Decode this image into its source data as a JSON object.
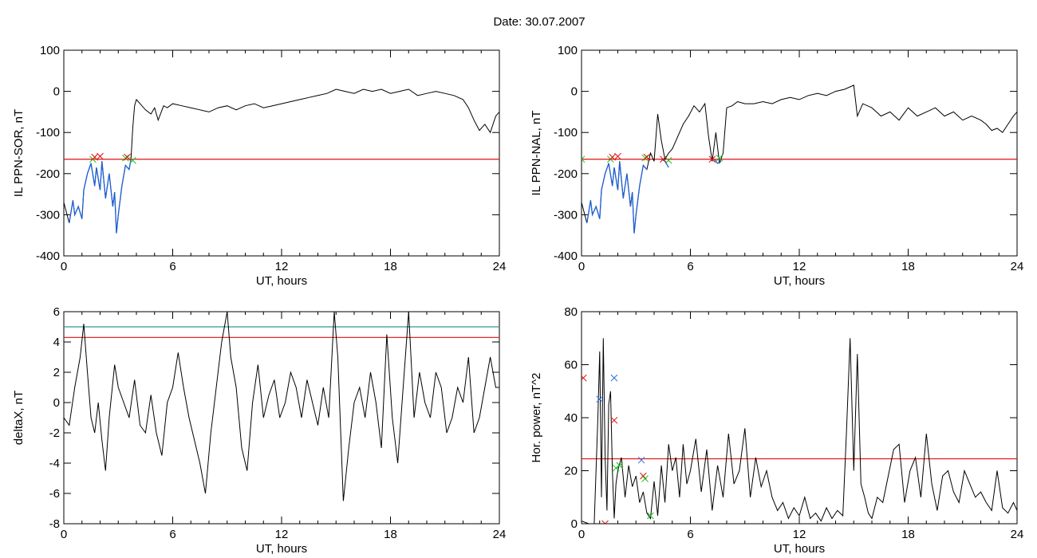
{
  "figure": {
    "title": "Date:  30.07.2007"
  },
  "colors": {
    "trace": "#000000",
    "highlight": "#1f5fd6",
    "threshold": "#e01010",
    "threshold2": "#2a9a9a",
    "marker_green": "#22c022",
    "marker_red": "#e01010",
    "marker_blue": "#2f6fe0"
  },
  "chart_data": [
    {
      "id": "sor",
      "type": "line",
      "title": "",
      "xlabel": "UT, hours",
      "ylabel": "IL PPN-SOR, nT",
      "xlim": [
        0,
        24
      ],
      "ylim": [
        -400,
        100
      ],
      "xticks": [
        "0",
        "6",
        "12",
        "18",
        "24"
      ],
      "yticks": [
        "-400",
        "-300",
        "-200",
        "-100",
        "0",
        "100"
      ],
      "threshold": -165,
      "series": [
        {
          "x": [
            0,
            0.3,
            0.5,
            0.6,
            0.8,
            1.0,
            1.1,
            1.3,
            1.5,
            1.7,
            1.8,
            2.0,
            2.1,
            2.3,
            2.5,
            2.7,
            2.8,
            2.9,
            3.0,
            3.2,
            3.4,
            3.6,
            3.7,
            3.8,
            3.9,
            4.0,
            4.1,
            4.2,
            4.5,
            4.8,
            5.0,
            5.2,
            5.5,
            5.7,
            6.0,
            6.5,
            7.0,
            7.5,
            8.0,
            8.5,
            9.0,
            9.5,
            10.0,
            10.5,
            11.0,
            11.5,
            12.0,
            12.5,
            13.0,
            13.5,
            14.0,
            14.5,
            15.0,
            15.5,
            16.0,
            16.5,
            17.0,
            17.5,
            18.0,
            18.5,
            19.0,
            19.5,
            20.0,
            20.5,
            21.0,
            21.5,
            22.0,
            22.3,
            22.6,
            22.9,
            23.2,
            23.5,
            23.8,
            24.0
          ],
          "y": [
            -270,
            -320,
            -265,
            -300,
            -280,
            -310,
            -240,
            -200,
            -175,
            -230,
            -185,
            -240,
            -170,
            -260,
            -200,
            -280,
            -245,
            -345,
            -300,
            -230,
            -180,
            -190,
            -165,
            -90,
            -35,
            -20,
            -25,
            -30,
            -45,
            -55,
            -40,
            -70,
            -35,
            -40,
            -30,
            -35,
            -40,
            -45,
            -50,
            -40,
            -35,
            -45,
            -35,
            -30,
            -40,
            -35,
            -30,
            -25,
            -20,
            -15,
            -10,
            -5,
            5,
            0,
            -5,
            5,
            0,
            5,
            -5,
            0,
            5,
            -10,
            -5,
            0,
            -5,
            -10,
            -20,
            -40,
            -70,
            -95,
            -80,
            -100,
            -60,
            -50
          ]
        },
        {
          "name": "",
          "x": [
            0.3,
            0.5,
            0.6,
            0.8,
            1.0,
            1.1,
            1.3,
            1.5,
            1.7,
            1.8,
            2.0,
            2.1,
            2.3,
            2.5,
            2.7,
            2.8,
            2.9,
            3.0,
            3.2,
            3.4,
            3.6,
            3.7
          ],
          "y": [
            -320,
            -265,
            -300,
            -280,
            -310,
            -240,
            -200,
            -175,
            -230,
            -185,
            -240,
            -170,
            -260,
            -200,
            -280,
            -245,
            -345,
            -300,
            -230,
            -180,
            -190,
            -165
          ]
        }
      ],
      "markers": [
        {
          "color": "green",
          "points": [
            [
              1.6,
              -165
            ],
            [
              3.4,
              -162
            ],
            [
              3.8,
              -168
            ]
          ]
        },
        {
          "color": "red",
          "points": [
            [
              1.7,
              -160
            ],
            [
              2.0,
              -158
            ],
            [
              3.5,
              -160
            ]
          ]
        }
      ]
    },
    {
      "id": "nal",
      "type": "line",
      "title": "",
      "xlabel": "UT, hours",
      "ylabel": "IL PPN-NAL, nT",
      "xlim": [
        0,
        24
      ],
      "ylim": [
        -400,
        100
      ],
      "xticks": [
        "0",
        "6",
        "12",
        "18",
        "24"
      ],
      "yticks": [
        "-400",
        "-300",
        "-200",
        "-100",
        "0",
        "100"
      ],
      "threshold": -165,
      "series": [
        {
          "x": [
            0,
            0.3,
            0.5,
            0.6,
            0.8,
            1.0,
            1.1,
            1.3,
            1.5,
            1.7,
            1.8,
            2.0,
            2.1,
            2.3,
            2.5,
            2.7,
            2.8,
            2.9,
            3.0,
            3.2,
            3.4,
            3.6,
            3.8,
            4.0,
            4.2,
            4.4,
            4.6,
            4.8,
            5.0,
            5.3,
            5.6,
            5.9,
            6.2,
            6.5,
            6.8,
            7.0,
            7.2,
            7.4,
            7.6,
            7.8,
            8.0,
            8.3,
            8.6,
            9.0,
            9.5,
            10.0,
            10.5,
            11.0,
            11.5,
            12.0,
            12.5,
            13.0,
            13.5,
            14.0,
            14.5,
            15.0,
            15.2,
            15.5,
            16.0,
            16.5,
            17.0,
            17.5,
            18.0,
            18.5,
            19.0,
            19.5,
            20.0,
            20.5,
            21.0,
            21.5,
            22.0,
            22.3,
            22.6,
            22.9,
            23.2,
            23.5,
            23.8,
            24.0
          ],
          "y": [
            -270,
            -320,
            -265,
            -300,
            -280,
            -310,
            -240,
            -200,
            -175,
            -230,
            -185,
            -240,
            -170,
            -260,
            -200,
            -280,
            -245,
            -345,
            -300,
            -230,
            -180,
            -190,
            -150,
            -170,
            -55,
            -120,
            -165,
            -150,
            -140,
            -110,
            -80,
            -60,
            -35,
            -50,
            -30,
            -110,
            -170,
            -100,
            -175,
            -150,
            -40,
            -35,
            -25,
            -30,
            -30,
            -25,
            -30,
            -20,
            -15,
            -20,
            -10,
            -5,
            -10,
            0,
            5,
            15,
            -60,
            -30,
            -40,
            -60,
            -50,
            -70,
            -40,
            -60,
            -50,
            -40,
            -60,
            -50,
            -70,
            -60,
            -70,
            -80,
            -95,
            -90,
            -100,
            -80,
            -60,
            -50
          ]
        },
        {
          "name": "",
          "x": [
            0.3,
            0.5,
            0.6,
            0.8,
            1.0,
            1.1,
            1.3,
            1.5,
            1.7,
            1.8,
            2.0,
            2.1,
            2.3,
            2.5,
            2.7,
            2.8,
            2.9,
            3.0,
            3.2,
            3.4,
            3.6
          ],
          "y": [
            -320,
            -265,
            -300,
            -280,
            -310,
            -240,
            -200,
            -175,
            -230,
            -185,
            -240,
            -170,
            -260,
            -200,
            -280,
            -245,
            -345,
            -300,
            -230,
            -180,
            -190
          ]
        },
        {
          "name": "",
          "x": [
            4.4,
            4.6,
            4.8
          ],
          "y": [
            -165,
            -170,
            -185
          ]
        },
        {
          "name": "",
          "x": [
            7.3,
            7.5,
            7.7
          ],
          "y": [
            -165,
            -175,
            -170
          ]
        }
      ],
      "markers": [
        {
          "color": "green",
          "points": [
            [
              1.6,
              -165
            ],
            [
              3.5,
              -162
            ],
            [
              4.8,
              -168
            ],
            [
              7.6,
              -162
            ],
            [
              0,
              -165
            ]
          ]
        },
        {
          "color": "red",
          "points": [
            [
              1.7,
              -160
            ],
            [
              2.0,
              -158
            ],
            [
              3.6,
              -160
            ],
            [
              4.5,
              -165
            ],
            [
              7.2,
              -165
            ]
          ]
        }
      ]
    },
    {
      "id": "deltax",
      "type": "line",
      "title": "",
      "xlabel": "UT, hours",
      "ylabel": "deltaX, nT",
      "xlim": [
        0,
        24
      ],
      "ylim": [
        -8,
        6
      ],
      "xticks": [
        "0",
        "6",
        "12",
        "18",
        "24"
      ],
      "yticks": [
        "-8",
        "-6",
        "-4",
        "-2",
        "0",
        "2",
        "4",
        "6"
      ],
      "thresholds": [
        {
          "value": 4.3,
          "color": "red"
        },
        {
          "value": 5.0,
          "color": "teal"
        }
      ],
      "series": [
        {
          "x": [
            0,
            0.3,
            0.6,
            0.9,
            1.1,
            1.3,
            1.5,
            1.7,
            1.9,
            2.1,
            2.3,
            2.5,
            2.8,
            3.0,
            3.3,
            3.6,
            3.9,
            4.2,
            4.5,
            4.8,
            5.1,
            5.4,
            5.7,
            6.0,
            6.3,
            6.6,
            6.9,
            7.2,
            7.5,
            7.8,
            8.1,
            8.4,
            8.7,
            9.0,
            9.2,
            9.5,
            9.8,
            10.1,
            10.4,
            10.7,
            11.0,
            11.3,
            11.6,
            11.9,
            12.2,
            12.5,
            12.8,
            13.1,
            13.4,
            13.7,
            14.0,
            14.3,
            14.6,
            14.9,
            15.1,
            15.4,
            15.7,
            16.0,
            16.3,
            16.6,
            16.9,
            17.2,
            17.5,
            17.8,
            18.1,
            18.4,
            18.7,
            19.0,
            19.3,
            19.6,
            19.9,
            20.2,
            20.5,
            20.8,
            21.1,
            21.4,
            21.7,
            22.0,
            22.3,
            22.6,
            22.9,
            23.2,
            23.5,
            23.8,
            24.0
          ],
          "y": [
            -1,
            -1.5,
            1,
            3,
            5.2,
            2,
            -1,
            -2,
            0,
            -2.5,
            -4.5,
            -1,
            2.5,
            1,
            0,
            -1,
            1.5,
            -1.5,
            -2,
            0.5,
            -2,
            -3.5,
            0,
            1,
            3.3,
            1,
            -1,
            -2.5,
            -4,
            -6,
            -2,
            1,
            4,
            6,
            3,
            1,
            -3,
            -4.5,
            0,
            2.5,
            -1,
            0.5,
            1.5,
            -1,
            0,
            2,
            1,
            -1,
            1.5,
            0,
            -1.5,
            1,
            -1,
            6,
            3,
            -6.5,
            -3,
            0,
            1,
            -1,
            2,
            0,
            -3,
            4.5,
            -1,
            -4,
            1,
            6,
            -1,
            2,
            0,
            -1,
            2,
            1,
            -2,
            -1,
            1,
            0,
            3,
            -2,
            -1,
            1,
            3,
            1,
            1
          ]
        }
      ]
    },
    {
      "id": "power",
      "type": "line",
      "title": "",
      "xlabel": "UT, hours",
      "ylabel": "Hor. power, nT^2",
      "xlim": [
        0,
        24
      ],
      "ylim": [
        0,
        80
      ],
      "xticks": [
        "0",
        "6",
        "12",
        "18",
        "24"
      ],
      "yticks": [
        "0",
        "20",
        "40",
        "60",
        "80"
      ],
      "threshold": 24.5,
      "series": [
        {
          "x": [
            0,
            0.4,
            0.7,
            0.9,
            1.0,
            1.1,
            1.2,
            1.3,
            1.4,
            1.5,
            1.6,
            1.7,
            1.8,
            1.9,
            2.0,
            2.2,
            2.4,
            2.6,
            2.8,
            3.0,
            3.2,
            3.4,
            3.6,
            3.8,
            4.0,
            4.2,
            4.4,
            4.6,
            4.8,
            5.0,
            5.2,
            5.4,
            5.6,
            5.8,
            6.0,
            6.3,
            6.6,
            6.9,
            7.2,
            7.5,
            7.8,
            8.1,
            8.4,
            8.7,
            9.0,
            9.3,
            9.6,
            9.9,
            10.2,
            10.5,
            10.8,
            11.1,
            11.4,
            11.7,
            12.0,
            12.3,
            12.6,
            12.9,
            13.2,
            13.5,
            13.8,
            14.1,
            14.4,
            14.6,
            14.8,
            15.0,
            15.2,
            15.4,
            15.6,
            15.8,
            16.0,
            16.3,
            16.6,
            16.9,
            17.2,
            17.5,
            17.8,
            18.1,
            18.4,
            18.7,
            19.0,
            19.3,
            19.6,
            19.9,
            20.2,
            20.5,
            20.8,
            21.1,
            21.4,
            21.7,
            22.0,
            22.3,
            22.6,
            22.9,
            23.2,
            23.5,
            23.8,
            24.0
          ],
          "y": [
            1,
            0,
            0,
            40,
            65,
            10,
            70,
            25,
            5,
            45,
            50,
            20,
            2,
            15,
            20,
            25,
            10,
            22,
            14,
            18,
            8,
            12,
            4,
            2,
            16,
            3,
            22,
            8,
            30,
            20,
            25,
            10,
            30,
            15,
            20,
            32,
            12,
            28,
            5,
            22,
            10,
            34,
            15,
            20,
            36,
            10,
            25,
            14,
            20,
            10,
            5,
            8,
            2,
            6,
            3,
            10,
            2,
            4,
            1,
            6,
            2,
            5,
            3,
            35,
            70,
            20,
            64,
            15,
            10,
            4,
            2,
            10,
            8,
            18,
            28,
            30,
            8,
            20,
            25,
            10,
            34,
            15,
            5,
            18,
            20,
            12,
            8,
            20,
            15,
            10,
            12,
            8,
            5,
            20,
            6,
            4,
            8,
            5
          ]
        }
      ],
      "markers": [
        {
          "color": "red",
          "points": [
            [
              0.1,
              55
            ],
            [
              1.8,
              39
            ],
            [
              3.4,
              18
            ],
            [
              1.3,
              0
            ]
          ]
        },
        {
          "color": "blue",
          "points": [
            [
              1.0,
              47
            ],
            [
              1.8,
              55
            ],
            [
              3.3,
              24
            ]
          ]
        },
        {
          "color": "green",
          "points": [
            [
              1.9,
              21
            ],
            [
              2.1,
              22
            ],
            [
              3.5,
              17
            ],
            [
              3.8,
              3
            ]
          ]
        }
      ]
    }
  ]
}
